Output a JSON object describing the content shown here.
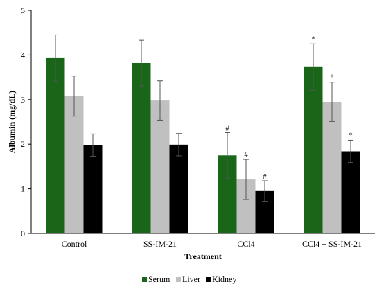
{
  "chart_data": {
    "type": "bar",
    "title": "",
    "xlabel": "Treatment",
    "ylabel": "Albumin  (mg/dL)",
    "ylim": [
      0,
      5
    ],
    "yticks": [
      "0",
      "1",
      "2",
      "3",
      "4",
      "5"
    ],
    "grid": false,
    "legend_position": "bottom",
    "categories": [
      "Control",
      "SS-IM-21",
      "CCl4",
      "CCl4 + SS-IM-21"
    ],
    "series": [
      {
        "name": "Serum",
        "color": "#196619",
        "values": [
          3.93,
          3.82,
          1.75,
          3.73
        ],
        "errors": [
          0.52,
          0.51,
          0.51,
          0.52
        ],
        "marks": [
          "",
          "",
          "#",
          "*"
        ]
      },
      {
        "name": "Liver",
        "color": "#c0c0c0",
        "values": [
          3.08,
          2.98,
          1.21,
          2.95
        ],
        "errors": [
          0.45,
          0.44,
          0.45,
          0.44
        ],
        "marks": [
          "",
          "",
          "#",
          "*"
        ]
      },
      {
        "name": "Kidney",
        "color": "#000000",
        "values": [
          1.98,
          1.99,
          0.95,
          1.84
        ],
        "errors": [
          0.25,
          0.25,
          0.23,
          0.25
        ],
        "marks": [
          "",
          "",
          "#",
          "*"
        ]
      }
    ]
  }
}
